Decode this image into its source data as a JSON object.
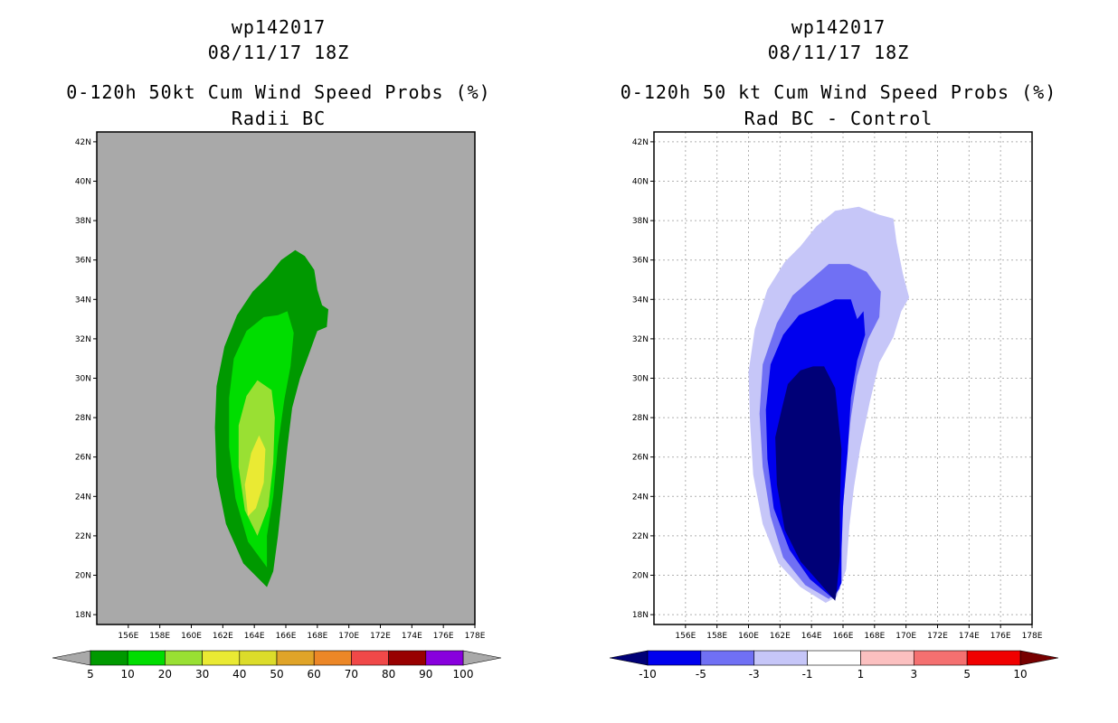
{
  "chart_data": [
    {
      "type": "contour-map",
      "storm": "wp142017",
      "datetime": "08/11/17 18Z",
      "title": "0-120h 50kt Cum Wind Speed Probs (%)",
      "subtitle": "Radii BC",
      "xlim": [
        154,
        178
      ],
      "ylim": [
        17.5,
        42.5
      ],
      "xticks": [
        "156E",
        "158E",
        "160E",
        "162E",
        "164E",
        "166E",
        "168E",
        "170E",
        "172E",
        "174E",
        "176E",
        "178E"
      ],
      "yticks": [
        "18N",
        "20N",
        "22N",
        "24N",
        "26N",
        "28N",
        "30N",
        "32N",
        "34N",
        "36N",
        "38N",
        "40N",
        "42N"
      ],
      "background": "#a9a9a9",
      "grid": false,
      "colorbar": {
        "levels": [
          "5",
          "10",
          "20",
          "30",
          "40",
          "50",
          "60",
          "70",
          "80",
          "90",
          "100"
        ],
        "colors": [
          "#009900",
          "#00dd00",
          "#99e033",
          "#eaea33",
          "#dcdc2a",
          "#e0a428",
          "#ec8727",
          "#f04848",
          "#980000",
          "#8800dd"
        ],
        "extend_color": "#a9a9a9"
      },
      "contours": [
        {
          "level": 5,
          "color": "#009900",
          "polygon": [
            [
              164.8,
              19.4
            ],
            [
              163.3,
              20.6
            ],
            [
              162.2,
              22.6
            ],
            [
              161.6,
              25.0
            ],
            [
              161.5,
              27.5
            ],
            [
              161.6,
              29.6
            ],
            [
              162.1,
              31.6
            ],
            [
              162.9,
              33.2
            ],
            [
              163.9,
              34.4
            ],
            [
              164.8,
              35.1
            ],
            [
              165.7,
              36.0
            ],
            [
              166.6,
              36.5
            ],
            [
              167.2,
              36.2
            ],
            [
              167.8,
              35.5
            ],
            [
              168.0,
              34.5
            ],
            [
              168.3,
              33.7
            ],
            [
              168.7,
              33.5
            ],
            [
              168.6,
              32.6
            ],
            [
              168.0,
              32.4
            ],
            [
              167.5,
              31.3
            ],
            [
              166.9,
              30.0
            ],
            [
              166.4,
              28.5
            ],
            [
              166.1,
              26.5
            ],
            [
              165.8,
              24.2
            ],
            [
              165.5,
              22.0
            ],
            [
              165.2,
              20.2
            ]
          ]
        },
        {
          "level": 10,
          "color": "#00dd00",
          "polygon": [
            [
              164.8,
              20.4
            ],
            [
              163.6,
              21.7
            ],
            [
              162.8,
              23.9
            ],
            [
              162.4,
              26.5
            ],
            [
              162.4,
              29.0
            ],
            [
              162.7,
              31.0
            ],
            [
              163.5,
              32.4
            ],
            [
              164.6,
              33.1
            ],
            [
              165.5,
              33.2
            ],
            [
              166.1,
              33.4
            ],
            [
              166.5,
              32.3
            ],
            [
              166.3,
              30.6
            ],
            [
              165.9,
              28.9
            ],
            [
              165.5,
              26.6
            ],
            [
              165.2,
              24.0
            ],
            [
              164.8,
              22.0
            ]
          ]
        },
        {
          "level": 20,
          "color": "#99e033",
          "polygon": [
            [
              164.2,
              22.0
            ],
            [
              163.4,
              23.3
            ],
            [
              163.0,
              25.5
            ],
            [
              163.0,
              27.6
            ],
            [
              163.5,
              29.1
            ],
            [
              164.2,
              29.9
            ],
            [
              165.1,
              29.4
            ],
            [
              165.3,
              28.0
            ],
            [
              165.2,
              25.7
            ],
            [
              164.9,
              23.5
            ]
          ]
        },
        {
          "level": 30,
          "color": "#eaea33",
          "polygon": [
            [
              163.6,
              23.0
            ],
            [
              163.4,
              24.6
            ],
            [
              163.8,
              26.2
            ],
            [
              164.3,
              27.1
            ],
            [
              164.7,
              26.4
            ],
            [
              164.6,
              24.7
            ],
            [
              164.1,
              23.4
            ]
          ]
        }
      ]
    },
    {
      "type": "contour-map",
      "storm": "wp142017",
      "datetime": "08/11/17 18Z",
      "title": "0-120h 50 kt Cum Wind Speed Probs (%)",
      "subtitle": "Rad BC - Control",
      "xlim": [
        154,
        178
      ],
      "ylim": [
        17.5,
        42.5
      ],
      "xticks": [
        "156E",
        "158E",
        "160E",
        "162E",
        "164E",
        "166E",
        "168E",
        "170E",
        "172E",
        "174E",
        "176E",
        "178E"
      ],
      "yticks": [
        "18N",
        "20N",
        "22N",
        "24N",
        "26N",
        "28N",
        "30N",
        "32N",
        "34N",
        "36N",
        "38N",
        "40N",
        "42N"
      ],
      "background": "#ffffff",
      "grid": true,
      "colorbar": {
        "levels": [
          "-10",
          "-5",
          "-3",
          "-1",
          "1",
          "3",
          "5",
          "10"
        ],
        "colors": [
          "#0000ee",
          "#7070f4",
          "#c6c6f8",
          "#ffffff",
          "#fbc0c0",
          "#f47070",
          "#f00000"
        ],
        "extend_low": "#000077",
        "extend_high": "#770000"
      },
      "contours": [
        {
          "level": -1,
          "color": "#c6c6f8",
          "polygon": [
            [
              164.9,
              18.6
            ],
            [
              163.3,
              19.4
            ],
            [
              161.9,
              20.6
            ],
            [
              160.9,
              22.6
            ],
            [
              160.3,
              25.1
            ],
            [
              160.1,
              27.8
            ],
            [
              160.0,
              30.3
            ],
            [
              160.4,
              32.5
            ],
            [
              161.2,
              34.5
            ],
            [
              162.3,
              35.9
            ],
            [
              163.3,
              36.7
            ],
            [
              164.3,
              37.7
            ],
            [
              165.5,
              38.5
            ],
            [
              167.0,
              38.7
            ],
            [
              168.3,
              38.3
            ],
            [
              169.2,
              38.1
            ],
            [
              169.4,
              36.9
            ],
            [
              169.8,
              35.3
            ],
            [
              170.2,
              34.1
            ],
            [
              169.7,
              33.4
            ],
            [
              169.2,
              32.1
            ],
            [
              168.3,
              30.8
            ],
            [
              167.7,
              28.8
            ],
            [
              167.1,
              26.5
            ],
            [
              166.7,
              24.5
            ],
            [
              166.4,
              22.5
            ],
            [
              166.2,
              20.3
            ],
            [
              165.6,
              18.9
            ]
          ]
        },
        {
          "level": -3,
          "color": "#7070f4",
          "polygon": [
            [
              165.1,
              18.8
            ],
            [
              163.6,
              19.5
            ],
            [
              162.2,
              20.9
            ],
            [
              161.4,
              23.0
            ],
            [
              160.9,
              25.5
            ],
            [
              160.7,
              28.2
            ],
            [
              160.9,
              30.7
            ],
            [
              161.8,
              32.8
            ],
            [
              162.8,
              34.2
            ],
            [
              164.1,
              35.1
            ],
            [
              165.1,
              35.8
            ],
            [
              166.4,
              35.8
            ],
            [
              167.5,
              35.4
            ],
            [
              168.4,
              34.4
            ],
            [
              168.3,
              33.1
            ],
            [
              167.6,
              32.0
            ],
            [
              166.9,
              30.1
            ],
            [
              166.5,
              28.0
            ],
            [
              166.2,
              25.7
            ],
            [
              166.0,
              23.4
            ],
            [
              165.9,
              21.1
            ],
            [
              165.8,
              19.3
            ]
          ]
        },
        {
          "level": -5,
          "color": "#0000ee",
          "polygon": [
            [
              165.4,
              18.8
            ],
            [
              163.9,
              19.8
            ],
            [
              162.6,
              21.3
            ],
            [
              161.6,
              23.4
            ],
            [
              161.2,
              25.9
            ],
            [
              161.1,
              28.4
            ],
            [
              161.4,
              30.7
            ],
            [
              162.2,
              32.2
            ],
            [
              163.2,
              33.2
            ],
            [
              164.4,
              33.6
            ],
            [
              165.5,
              34.0
            ],
            [
              166.5,
              34.0
            ],
            [
              166.9,
              33.0
            ],
            [
              167.3,
              33.4
            ],
            [
              167.4,
              32.2
            ],
            [
              166.9,
              30.9
            ],
            [
              166.5,
              29.0
            ],
            [
              166.3,
              26.3
            ],
            [
              166.0,
              23.5
            ],
            [
              165.9,
              21.3
            ],
            [
              165.9,
              19.6
            ]
          ]
        },
        {
          "level": -10,
          "color": "#000077",
          "polygon": [
            [
              165.5,
              18.7
            ],
            [
              164.3,
              19.8
            ],
            [
              163.3,
              20.7
            ],
            [
              162.3,
              22.3
            ],
            [
              161.8,
              24.6
            ],
            [
              161.7,
              27.0
            ],
            [
              162.1,
              28.4
            ],
            [
              162.5,
              29.7
            ],
            [
              163.3,
              30.4
            ],
            [
              164.1,
              30.6
            ],
            [
              164.8,
              30.6
            ],
            [
              165.5,
              29.5
            ],
            [
              165.9,
              26.4
            ],
            [
              165.8,
              23.5
            ],
            [
              165.8,
              21.0
            ],
            [
              165.6,
              19.2
            ]
          ]
        }
      ]
    }
  ]
}
